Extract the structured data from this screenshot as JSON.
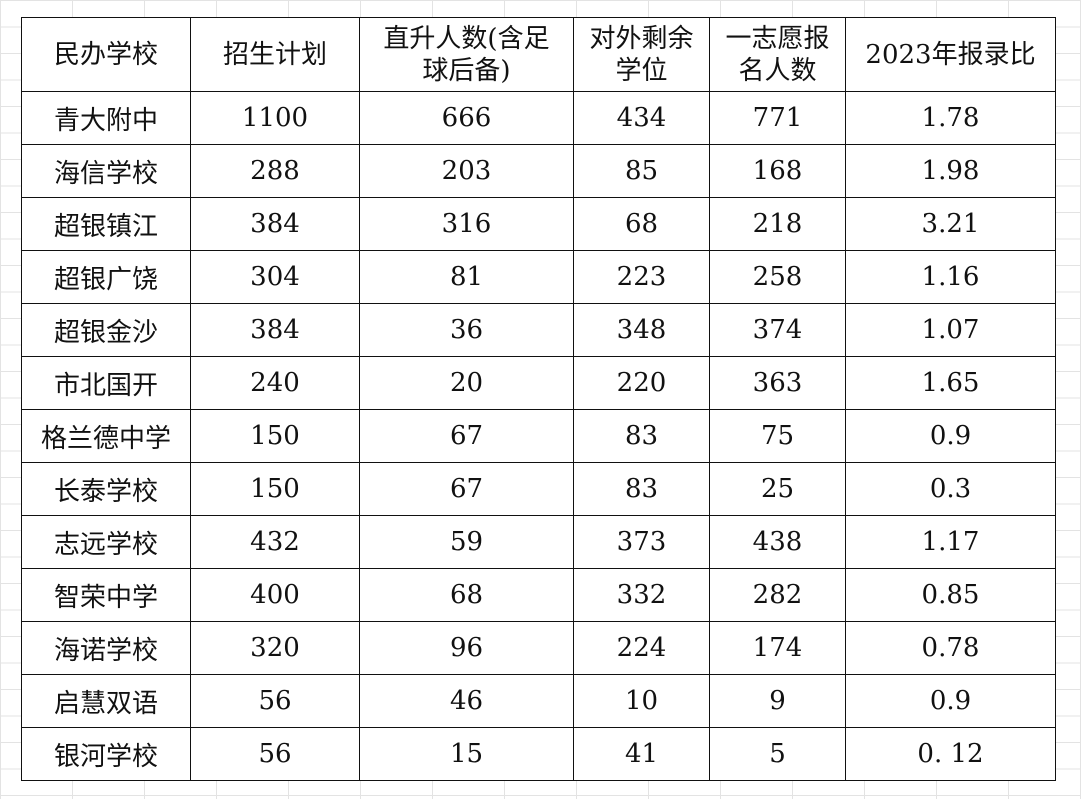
{
  "table": {
    "headers": [
      {
        "lines": [
          "民办学校"
        ]
      },
      {
        "lines": [
          "招生计划"
        ]
      },
      {
        "lines": [
          "直升人数(含足",
          "球后备)"
        ]
      },
      {
        "lines": [
          "对外剩余",
          "学位"
        ]
      },
      {
        "lines": [
          "一志愿报",
          "名人数"
        ]
      },
      {
        "lines": [
          "2023年报录比"
        ]
      }
    ],
    "rows": [
      [
        "青大附中",
        "1100",
        "666",
        "434",
        "771",
        "1.78"
      ],
      [
        "海信学校",
        "288",
        "203",
        "85",
        "168",
        "1.98"
      ],
      [
        "超银镇江",
        "384",
        "316",
        "68",
        "218",
        "3.21"
      ],
      [
        "超银广饶",
        "304",
        "81",
        "223",
        "258",
        "1.16"
      ],
      [
        "超银金沙",
        "384",
        "36",
        "348",
        "374",
        "1.07"
      ],
      [
        "市北国开",
        "240",
        "20",
        "220",
        "363",
        "1.65"
      ],
      [
        "格兰德中学",
        "150",
        "67",
        "83",
        "75",
        "0.9"
      ],
      [
        "长泰学校",
        "150",
        "67",
        "83",
        "25",
        "0.3"
      ],
      [
        "志远学校",
        "432",
        "59",
        "373",
        "438",
        "1.17"
      ],
      [
        "智荣中学",
        "400",
        "68",
        "332",
        "282",
        "0.85"
      ],
      [
        "海诺学校",
        "320",
        "96",
        "224",
        "174",
        "0.78"
      ],
      [
        "启慧双语",
        "56",
        "46",
        "10",
        "9",
        "0.9"
      ],
      [
        "银河学校",
        "56",
        "15",
        "41",
        "5",
        "0. 12"
      ]
    ]
  }
}
